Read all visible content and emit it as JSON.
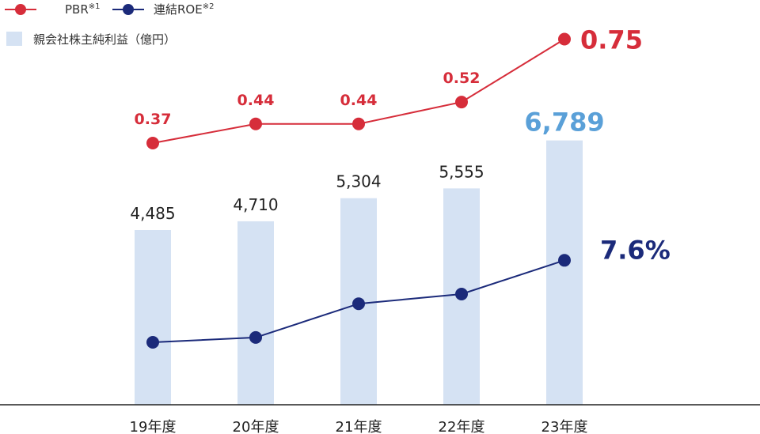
{
  "legend": {
    "pbr_label": "PBR",
    "pbr_note": "※1",
    "roe_label": "連結ROE",
    "roe_note": "※2",
    "bar_label": "親会社株主純利益（億円）"
  },
  "colors": {
    "pbr": "#d62d3a",
    "roe": "#1b2a7a",
    "bar": "#d5e2f3",
    "bar_highlight_label": "#5aa0d8",
    "axis": "#222222"
  },
  "chart_data": {
    "type": "bar",
    "categories": [
      "19年度",
      "20年度",
      "21年度",
      "22年度",
      "23年度"
    ],
    "bar_series": {
      "name": "親会社株主純利益（億円）",
      "values": [
        4485,
        4710,
        5304,
        5555,
        6789
      ],
      "labels": [
        "4,485",
        "4,710",
        "5,304",
        "5,555",
        "6,789"
      ]
    },
    "line_series": [
      {
        "name": "PBR",
        "values": [
          0.37,
          0.44,
          0.44,
          0.52,
          0.75
        ],
        "labels": [
          "0.37",
          "0.44",
          "0.44",
          "0.52",
          "0.75"
        ]
      },
      {
        "name": "連結ROE",
        "values": [
          5.9,
          6.0,
          6.7,
          6.9,
          7.6
        ],
        "last_label": "7.6%"
      }
    ],
    "legend_position": "top-left",
    "grid": false
  }
}
